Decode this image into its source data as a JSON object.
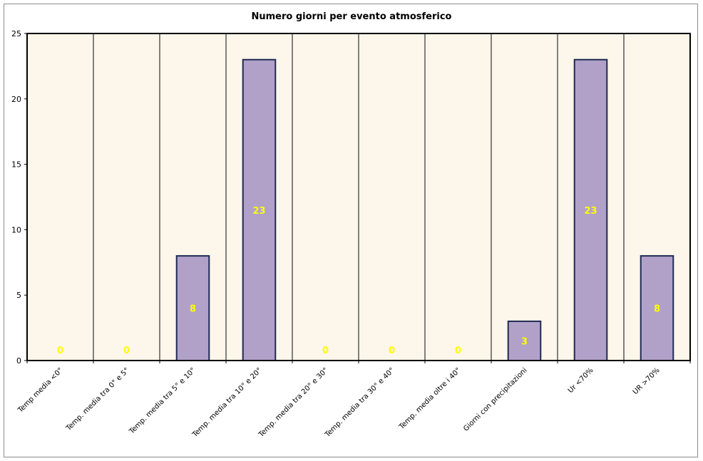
{
  "chart_data": {
    "type": "bar",
    "title": "Numero giorni per evento atmosferico",
    "xlabel": "",
    "ylabel": "",
    "ylim": [
      0,
      25
    ],
    "yticks": [
      0,
      5,
      10,
      15,
      20,
      25
    ],
    "categories": [
      "Temp media <0°",
      "Temp. media tra 0° e 5°",
      "Temp. media tra 5° e 10°",
      "Temp. media tra 10° e 20°",
      "Temp. media tra 20° e 30°",
      "Temp. media tra 30° e 40°",
      "Temp. media oltre i 40°",
      "Giorni con precipitazioni",
      "Ur <70%",
      "UR >70%"
    ],
    "values": [
      0,
      0,
      8,
      23,
      0,
      0,
      0,
      3,
      23,
      8
    ],
    "data_labels": [
      "0",
      "0",
      "8",
      "23",
      "0",
      "0",
      "0",
      "3",
      "23",
      "8"
    ],
    "grid": "vertical",
    "legend": "none",
    "colors": {
      "bar_fill": "#b1a1c9",
      "bar_border": "#1f2a52",
      "plot_background": "#fdf6ea",
      "grid_lines": "#808080",
      "data_label": "#ffff00"
    }
  }
}
